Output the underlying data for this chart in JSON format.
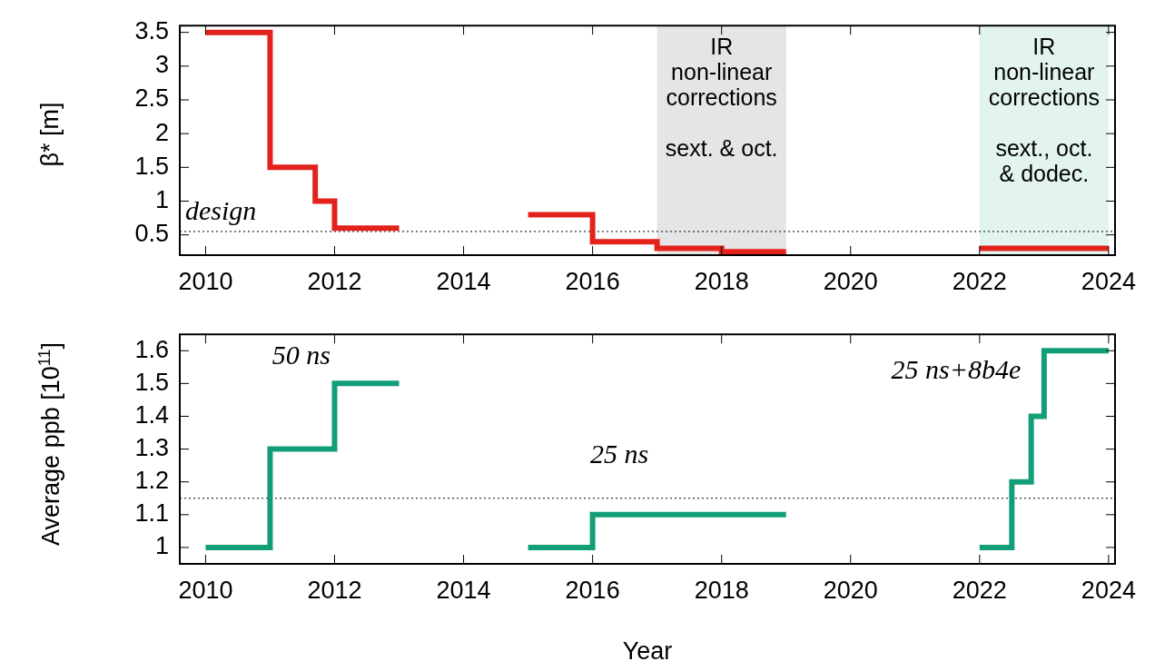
{
  "chart_data": [
    {
      "type": "step",
      "ylabel": "β* [m]",
      "xlim": [
        2009.6,
        2024.1
      ],
      "xticks": [
        2010,
        2012,
        2014,
        2016,
        2018,
        2020,
        2022,
        2024
      ],
      "ylim": [
        0.2,
        3.6
      ],
      "yticks": [
        0.5,
        1,
        1.5,
        2,
        2.5,
        3,
        3.5
      ],
      "series": [
        {
          "color": "#e3221c",
          "x": [
            2010,
            2011,
            2011.7,
            2012,
            2013,
            2014,
            2015,
            2016,
            2017,
            2018,
            2019,
            2020,
            2022,
            2024
          ],
          "values": [
            3.5,
            1.5,
            1.0,
            0.6,
            0.6,
            null,
            0.8,
            0.4,
            0.3,
            0.25,
            0.25,
            null,
            0.3,
            0.3
          ]
        }
      ],
      "ref_lines": [
        {
          "axis": "y",
          "value": 0.55,
          "label": "design",
          "line_style": "dotted"
        }
      ],
      "bands": [
        {
          "axis": "x",
          "from": 2017,
          "to": 2019,
          "label": "IR\nnon-linear\ncorrections\n\nsext. & oct.",
          "color": "#e5e5e5"
        },
        {
          "axis": "x",
          "from": 2022,
          "to": 2024,
          "label": "IR\nnon-linear\ncorrections\n\nsext., oct.\n& dodec.",
          "color": "#e3f4f0"
        }
      ]
    },
    {
      "type": "step",
      "xlabel": "Year",
      "ylabel": "Average ppb [10$^{11}$]",
      "xlim": [
        2009.6,
        2024.1
      ],
      "xticks": [
        2010,
        2012,
        2014,
        2016,
        2018,
        2020,
        2022,
        2024
      ],
      "ylim": [
        0.95,
        1.65
      ],
      "yticks": [
        1,
        1.1,
        1.2,
        1.3,
        1.4,
        1.5,
        1.6
      ],
      "series": [
        {
          "color": "#129e78",
          "x": [
            2010,
            2011,
            2012,
            2013,
            2014,
            2015,
            2016,
            2019,
            2020,
            2022,
            2022.5,
            2022.8,
            2023,
            2024
          ],
          "values": [
            1.0,
            1.3,
            1.5,
            1.5,
            null,
            1.0,
            1.1,
            1.1,
            null,
            1.0,
            1.2,
            1.4,
            1.6,
            1.6
          ]
        }
      ],
      "ref_lines": [
        {
          "axis": "y",
          "value": 1.15,
          "line_style": "dotted"
        }
      ],
      "annotations": [
        "50 ns",
        "25 ns",
        "25 ns+8b4e"
      ]
    }
  ]
}
